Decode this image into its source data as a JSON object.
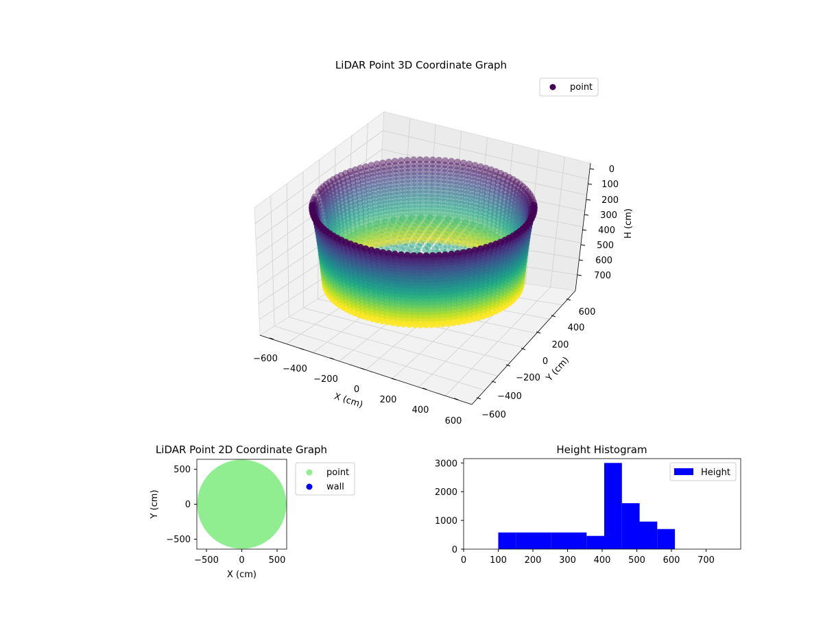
{
  "figure": {
    "background": "#ffffff"
  },
  "chart_data": [
    {
      "type": "scatter3d",
      "title": "LiDAR Point 3D Coordinate Graph",
      "xlabel": "X (cm)",
      "ylabel": "Y (cm)",
      "zlabel": "H (cm)",
      "xlim": [
        -650,
        650
      ],
      "ylim": [
        -650,
        650
      ],
      "zlim": [
        0,
        780
      ],
      "z_inverted": true,
      "xticks": [
        "−600",
        "−400",
        "−200",
        "0",
        "200",
        "400",
        "600"
      ],
      "yticks": [
        "−600",
        "−400",
        "−200",
        "0",
        "200",
        "400",
        "600"
      ],
      "zticks": [
        "0",
        "100",
        "200",
        "300",
        "400",
        "500",
        "600",
        "700"
      ],
      "legend": {
        "position": "top-right",
        "entries": [
          {
            "label": "point",
            "color": "#440154"
          }
        ]
      },
      "colormap": "viridis",
      "grid": true,
      "series": [
        {
          "name": "point",
          "shape": "cylinder-wall",
          "radius_at_top": 600,
          "radius_at_bottom": 530,
          "height_range": [
            0,
            700
          ],
          "gap_angle_deg": 130,
          "floor_height": 600
        }
      ]
    },
    {
      "type": "scatter",
      "title": "LiDAR Point 2D Coordinate Graph",
      "xlabel": "X (cm)",
      "ylabel": "Y (cm)",
      "xlim": [
        -650,
        650
      ],
      "ylim": [
        -650,
        650
      ],
      "xticks": [
        "−500",
        "0",
        "500"
      ],
      "yticks": [
        "−500",
        "0",
        "500"
      ],
      "legend": {
        "position": "right",
        "entries": [
          {
            "label": "point",
            "color": "#90ee90"
          },
          {
            "label": "wall",
            "color": "#0000ff"
          }
        ]
      },
      "series": [
        {
          "name": "point",
          "color": "#90ee90",
          "shape": "filled-disk",
          "center": [
            0,
            0
          ],
          "radius": 640
        }
      ]
    },
    {
      "type": "histogram",
      "title": "Height Histogram",
      "xlim": [
        0,
        800
      ],
      "ylim": [
        0,
        3150
      ],
      "xticks": [
        "0",
        "100",
        "200",
        "300",
        "400",
        "500",
        "600",
        "700"
      ],
      "yticks": [
        "0",
        "1000",
        "2000",
        "3000"
      ],
      "legend": {
        "position": "top-right",
        "entries": [
          {
            "label": "Height",
            "color": "#0000ff"
          }
        ]
      },
      "series": [
        {
          "name": "Height",
          "color": "#0000ff",
          "bins": [
            {
              "x0": 100,
              "x1": 151,
              "count": 580
            },
            {
              "x0": 151,
              "x1": 202,
              "count": 580
            },
            {
              "x0": 202,
              "x1": 253,
              "count": 580
            },
            {
              "x0": 253,
              "x1": 304,
              "count": 580
            },
            {
              "x0": 304,
              "x1": 355,
              "count": 580
            },
            {
              "x0": 355,
              "x1": 406,
              "count": 460
            },
            {
              "x0": 406,
              "x1": 457,
              "count": 3000
            },
            {
              "x0": 457,
              "x1": 508,
              "count": 1600
            },
            {
              "x0": 508,
              "x1": 559,
              "count": 960
            },
            {
              "x0": 559,
              "x1": 610,
              "count": 700
            }
          ]
        }
      ]
    }
  ]
}
